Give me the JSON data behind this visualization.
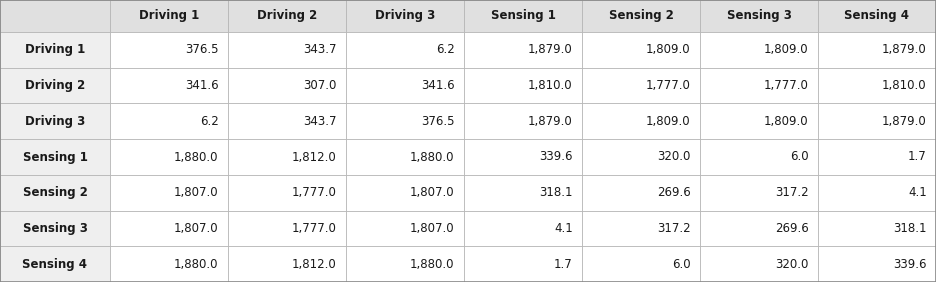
{
  "col_headers": [
    "Driving 1",
    "Driving 2",
    "Driving 3",
    "Sensing 1",
    "Sensing 2",
    "Sensing 3",
    "Sensing 4"
  ],
  "row_headers": [
    "Driving 1",
    "Driving 2",
    "Driving 3",
    "Sensing 1",
    "Sensing 2",
    "Sensing 3",
    "Sensing 4"
  ],
  "table_data": [
    [
      "376.5",
      "343.7",
      "6.2",
      "1,879.0",
      "1,809.0",
      "1,809.0",
      "1,879.0"
    ],
    [
      "341.6",
      "307.0",
      "341.6",
      "1,810.0",
      "1,777.0",
      "1,777.0",
      "1,810.0"
    ],
    [
      "6.2",
      "343.7",
      "376.5",
      "1,879.0",
      "1,809.0",
      "1,809.0",
      "1,879.0"
    ],
    [
      "1,880.0",
      "1,812.0",
      "1,880.0",
      "339.6",
      "320.0",
      "6.0",
      "1.7"
    ],
    [
      "1,807.0",
      "1,777.0",
      "1,807.0",
      "318.1",
      "269.6",
      "317.2",
      "4.1"
    ],
    [
      "1,807.0",
      "1,777.0",
      "1,807.0",
      "4.1",
      "317.2",
      "269.6",
      "318.1"
    ],
    [
      "1,880.0",
      "1,812.0",
      "1,880.0",
      "1.7",
      "6.0",
      "320.0",
      "339.6"
    ]
  ],
  "header_bg": "#e0e0e0",
  "row_header_bg": "#efefef",
  "cell_bg": "#ffffff",
  "border_color": "#b0b0b0",
  "header_font_size": 8.5,
  "cell_font_size": 8.5,
  "fig_bg": "#ffffff",
  "outer_border_color": "#888888",
  "fig_width": 9.36,
  "fig_height": 2.82,
  "dpi": 100
}
